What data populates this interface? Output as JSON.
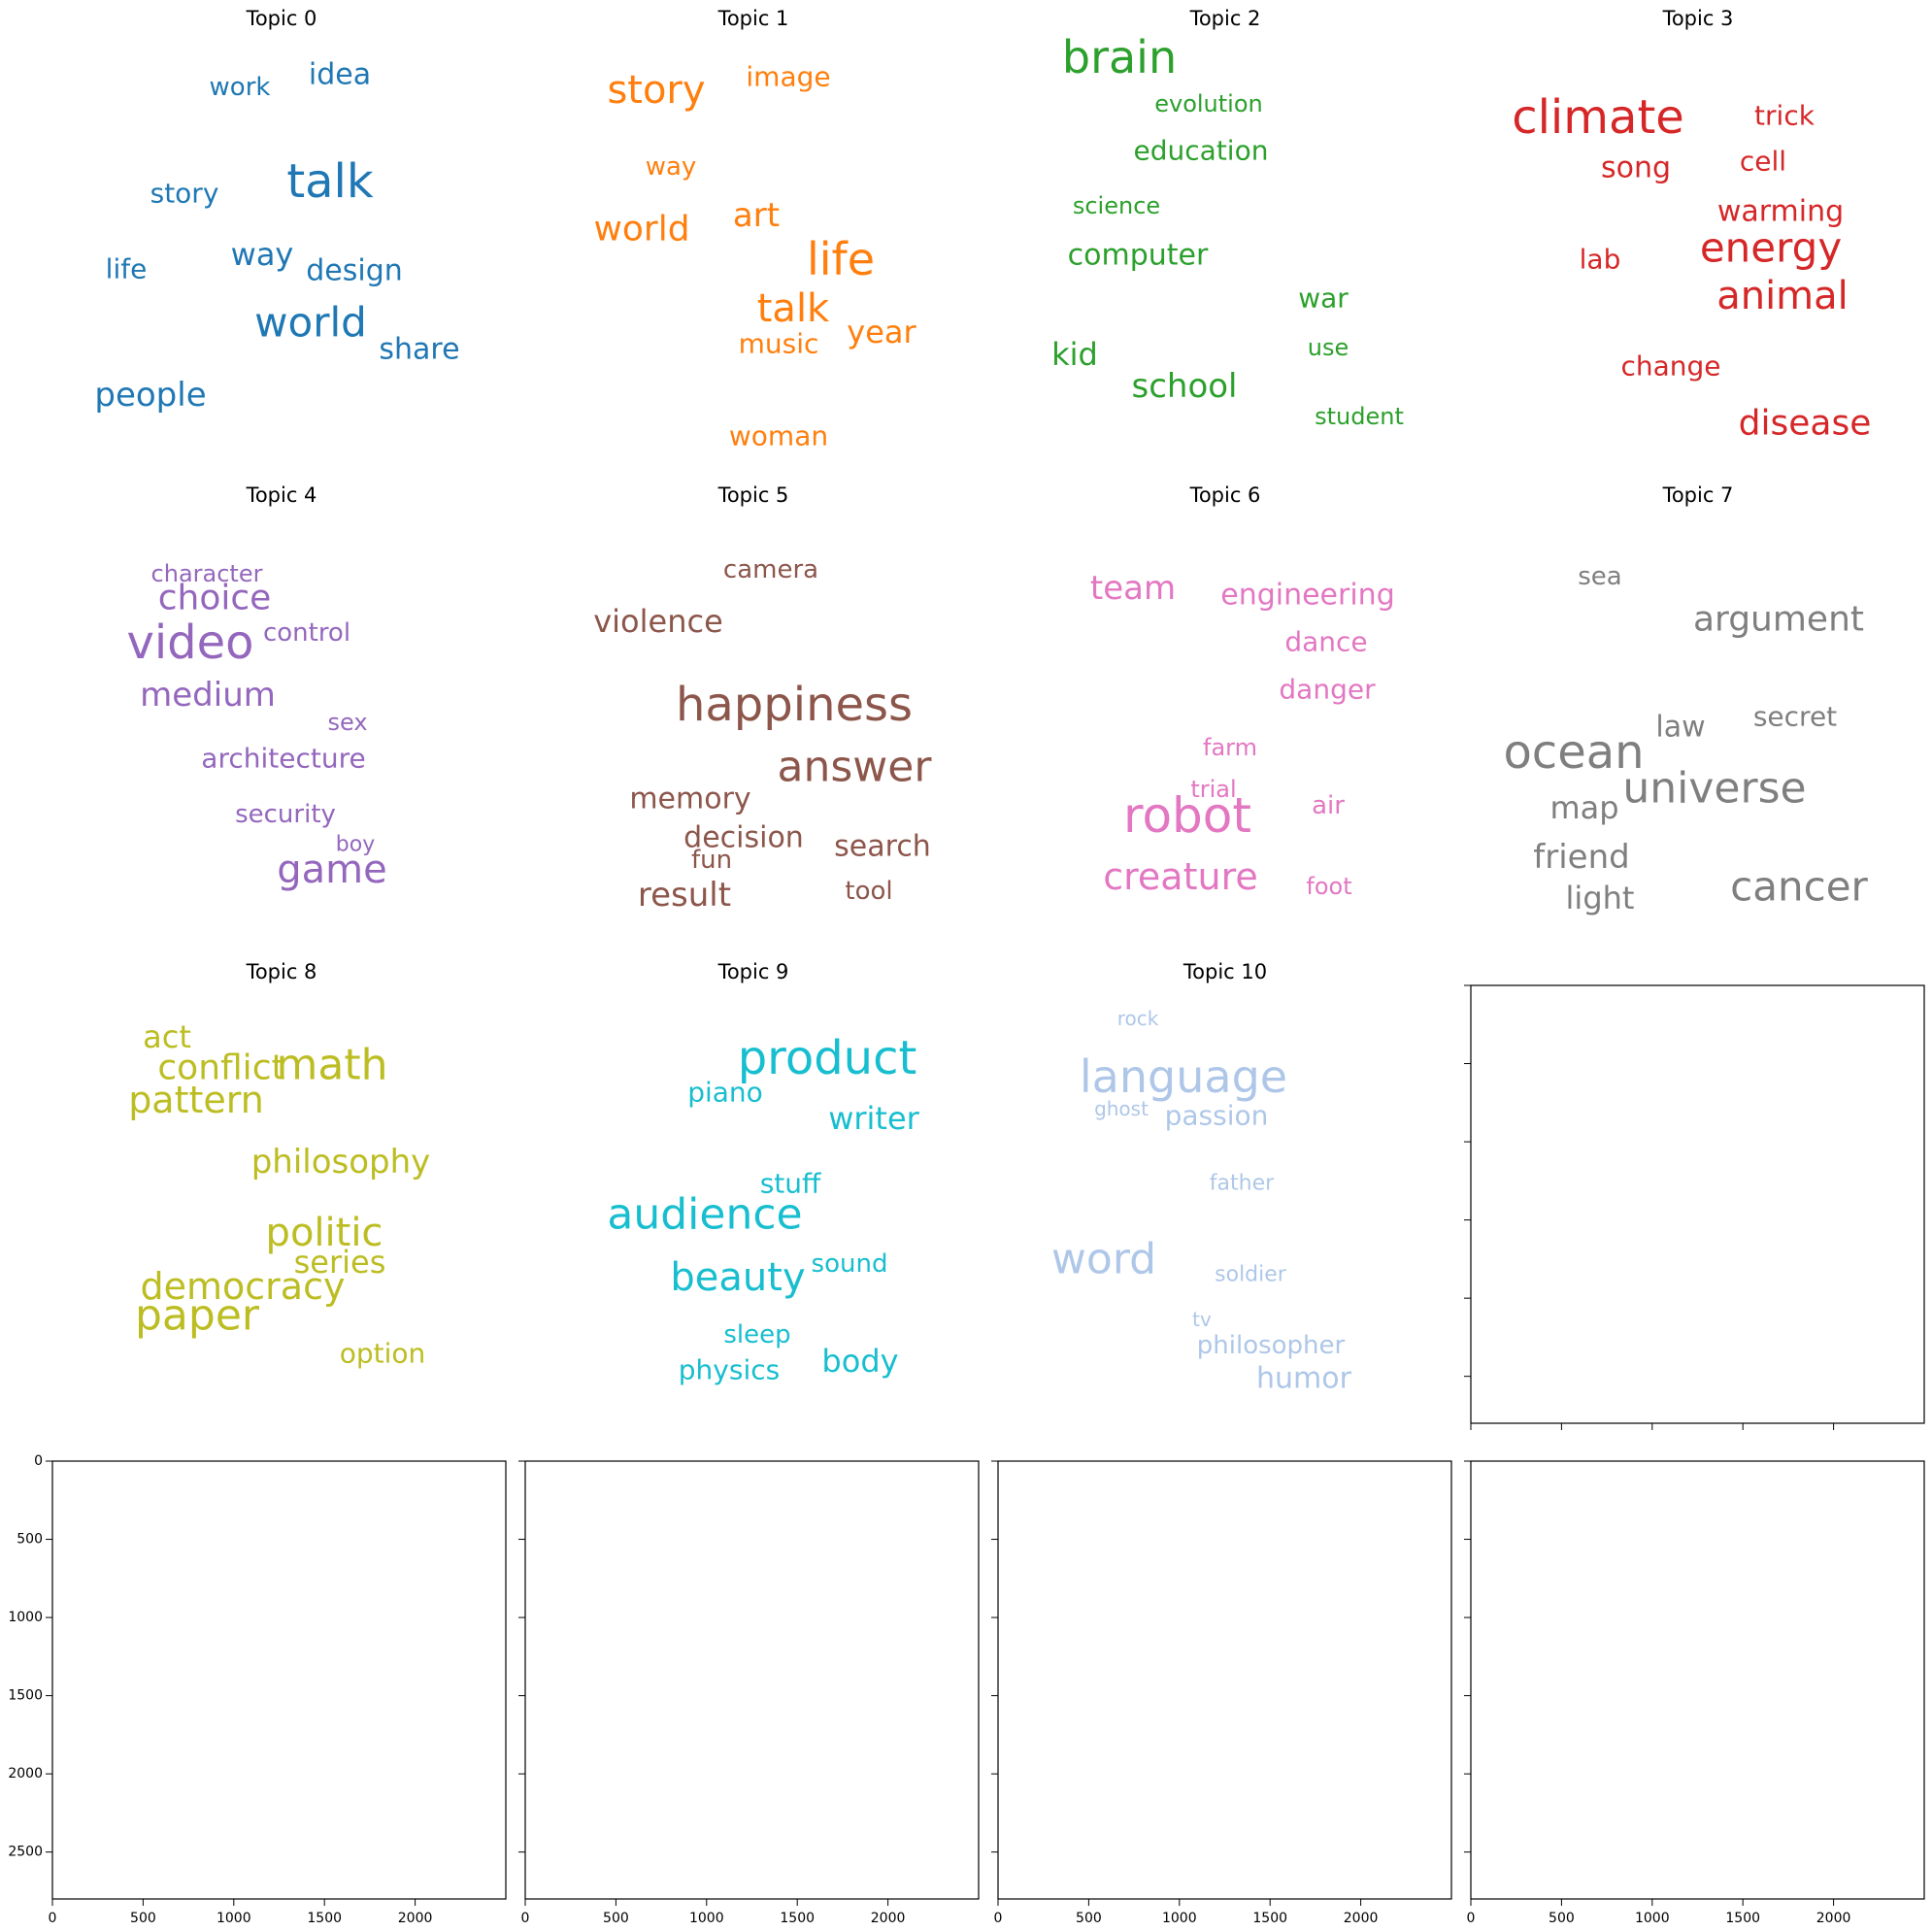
{
  "chart_data": {
    "type": "wordcloud",
    "colors": {
      "Topic 0": "#1f77b4",
      "Topic 1": "#ff7f0e",
      "Topic 2": "#2ca02c",
      "Topic 3": "#d62728",
      "Topic 4": "#9467bd",
      "Topic 5": "#8c564b",
      "Topic 6": "#e377c2",
      "Topic 7": "#7f7f7f",
      "Topic 8": "#bcbd22",
      "Topic 9": "#17becf",
      "Topic 10": "#aec7e8"
    },
    "panels": [
      {
        "title": "Topic 0",
        "words": [
          "talk",
          "world",
          "people",
          "way",
          "design",
          "share",
          "idea",
          "story",
          "life",
          "work"
        ]
      },
      {
        "title": "Topic 1",
        "words": [
          "life",
          "story",
          "talk",
          "world",
          "art",
          "year",
          "woman",
          "music",
          "image",
          "way"
        ]
      },
      {
        "title": "Topic 2",
        "words": [
          "brain",
          "school",
          "kid",
          "computer",
          "education",
          "war",
          "evolution",
          "science",
          "use",
          "student"
        ]
      },
      {
        "title": "Topic 3",
        "words": [
          "climate",
          "energy",
          "animal",
          "disease",
          "song",
          "warming",
          "cell",
          "change",
          "trick",
          "lab"
        ]
      },
      {
        "title": "Topic 4",
        "words": [
          "video",
          "game",
          "choice",
          "medium",
          "architecture",
          "control",
          "security",
          "character",
          "sex",
          "boy"
        ]
      },
      {
        "title": "Topic 5",
        "words": [
          "happiness",
          "answer",
          "violence",
          "result",
          "decision",
          "search",
          "memory",
          "camera",
          "tool",
          "fun"
        ]
      },
      {
        "title": "Topic 6",
        "words": [
          "robot",
          "creature",
          "team",
          "engineering",
          "dance",
          "danger",
          "air",
          "foot",
          "trial",
          "farm"
        ]
      },
      {
        "title": "Topic 7",
        "words": [
          "ocean",
          "universe",
          "cancer",
          "argument",
          "friend",
          "light",
          "map",
          "law",
          "secret",
          "sea"
        ]
      },
      {
        "title": "Topic 8",
        "words": [
          "math",
          "paper",
          "politic",
          "democracy",
          "pattern",
          "conflict",
          "philosophy",
          "series",
          "act",
          "option"
        ]
      },
      {
        "title": "Topic 9",
        "words": [
          "product",
          "audience",
          "beauty",
          "writer",
          "body",
          "piano",
          "stuff",
          "physics",
          "sound",
          "sleep"
        ]
      },
      {
        "title": "Topic 10",
        "words": [
          "language",
          "word",
          "passion",
          "humor",
          "philosopher",
          "father",
          "soldier",
          "rock",
          "ghost",
          "tv"
        ]
      }
    ],
    "empty_axes": {
      "count": 5,
      "x_ticks": [
        "0",
        "500",
        "1000",
        "1500",
        "2000"
      ],
      "y_ticks": [
        "0",
        "500",
        "1000",
        "1500",
        "2000",
        "2500"
      ],
      "xlim": [
        0,
        2500
      ],
      "ylim": [
        2800,
        0
      ]
    }
  }
}
